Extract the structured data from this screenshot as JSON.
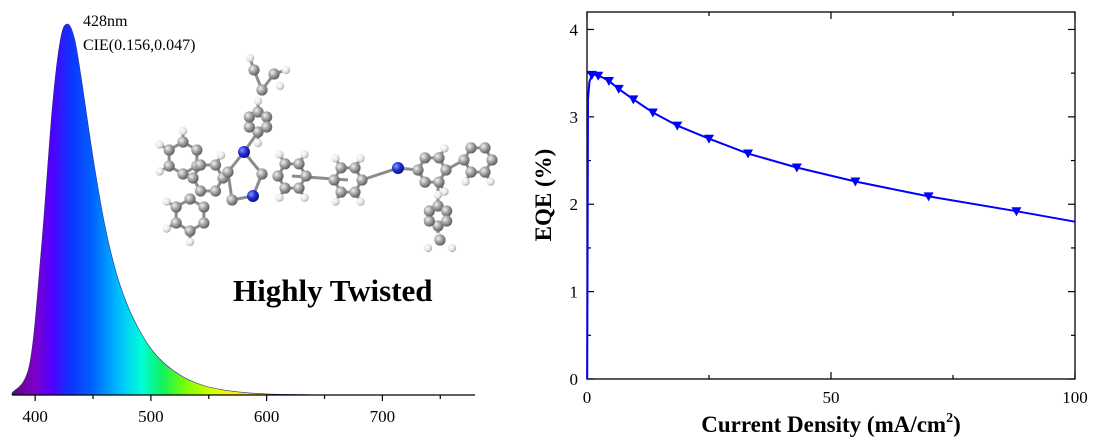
{
  "chart_data": [
    {
      "type": "area",
      "xlabel": "",
      "ylabel": "",
      "xlim": [
        380,
        780
      ],
      "x_ticks": [
        "400",
        "500",
        "600",
        "700"
      ],
      "x_tick_values": [
        400,
        500,
        600,
        700
      ],
      "y_axis_visible": false,
      "fill": "visible-spectrum color gradient",
      "series": [
        {
          "x": [
            380,
            395,
            405,
            415,
            422,
            428,
            434,
            440,
            450,
            460,
            470,
            480,
            490,
            500,
            510,
            520,
            530,
            545,
            560,
            580,
            600,
            630,
            660,
            700
          ],
          "values": [
            0.005,
            0.08,
            0.38,
            0.78,
            0.96,
            1.0,
            0.96,
            0.85,
            0.64,
            0.46,
            0.33,
            0.24,
            0.175,
            0.125,
            0.09,
            0.065,
            0.045,
            0.026,
            0.015,
            0.007,
            0.003,
            0.001,
            0.0,
            0.0
          ]
        }
      ],
      "annotations": [
        "428nm",
        "CIE(0.156,0.047)",
        "Highly Twisted"
      ]
    },
    {
      "type": "line",
      "xlabel": "Current Density (mA/cm",
      "xlabel_superscript": "2",
      "xlabel_suffix": ")",
      "ylabel": "EQE (%)",
      "xlim": [
        0,
        100
      ],
      "ylim": [
        0,
        4.2
      ],
      "x_ticks": [
        "0",
        "50",
        "100"
      ],
      "x_tick_values": [
        0,
        50,
        100
      ],
      "y_ticks": [
        "0",
        "1",
        "2",
        "3",
        "4"
      ],
      "y_tick_values": [
        0,
        1,
        2,
        3,
        4
      ],
      "color": "#0000ff",
      "marker": "down-triangle",
      "series": [
        {
          "x": [
            0.05,
            0.2,
            0.5,
            1.0,
            1.6,
            2.3,
            3.2,
            4.5,
            6.5,
            9.5,
            13.5,
            18.5,
            25,
            33,
            43,
            55,
            70,
            88,
            100
          ],
          "values": [
            0.0,
            3.2,
            3.4,
            3.48,
            3.48,
            3.47,
            3.45,
            3.41,
            3.32,
            3.2,
            3.05,
            2.9,
            2.75,
            2.58,
            2.42,
            2.26,
            2.09,
            1.92,
            1.8
          ],
          "marker_x": [
            1.0,
            2.3,
            4.5,
            6.5,
            9.5,
            13.5,
            18.5,
            25,
            33,
            43,
            55,
            70,
            88
          ]
        }
      ]
    }
  ],
  "molecule": {
    "atom_colors": {
      "carbon": "#9a9a9a",
      "hydrogen": "#ededed",
      "nitrogen": "#1a22c8"
    }
  }
}
